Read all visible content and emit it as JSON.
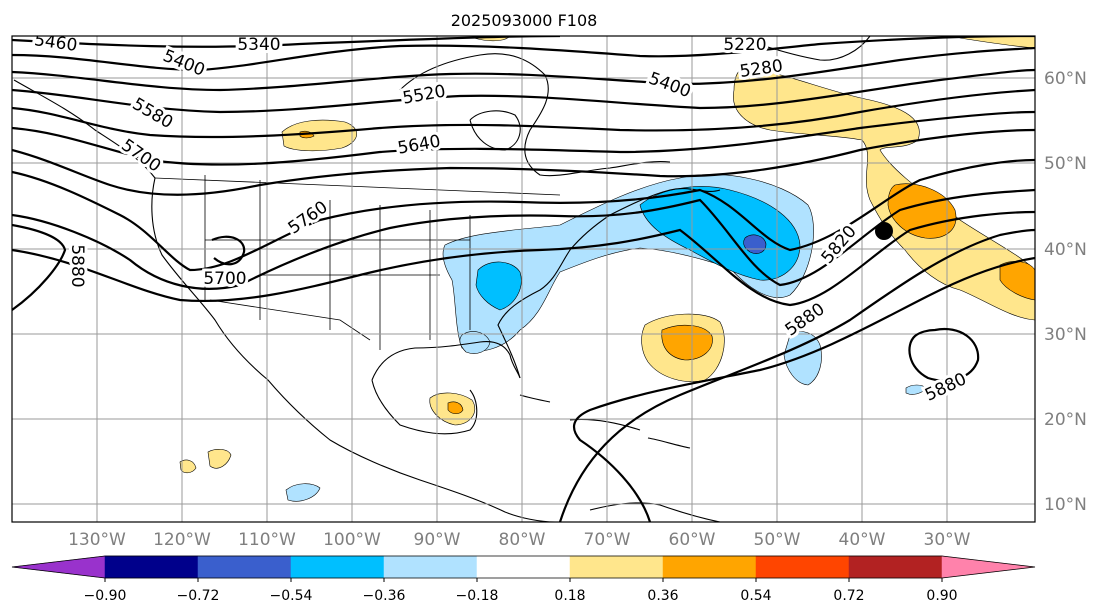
{
  "title": "2025093000 F108",
  "lat_labels": [
    "60°N",
    "50°N",
    "40°N",
    "30°N",
    "20°N",
    "10°N"
  ],
  "lon_labels": [
    "130°W",
    "120°W",
    "110°W",
    "100°W",
    "90°W",
    "80°W",
    "70°W",
    "60°W",
    "50°W",
    "40°W",
    "30°W"
  ],
  "contour_labels": [
    "5460",
    "5340",
    "5400",
    "5220",
    "5280",
    "5580",
    "5520",
    "5400",
    "5700",
    "5640",
    "5760",
    "5880",
    "5700",
    "5820",
    "5880",
    "5880"
  ],
  "colorbar": {
    "ticks": [
      "−0.90",
      "−0.72",
      "−0.54",
      "−0.36",
      "−0.18",
      "0.18",
      "0.36",
      "0.54",
      "0.72",
      "0.90"
    ],
    "colors": [
      "#9932cc",
      "#00008b",
      "#3a5fcd",
      "#00bfff",
      "#b0e2ff",
      "#ffffff",
      "#ffe68c",
      "#ffa500",
      "#ff4500",
      "#b22222",
      "#ff82ab"
    ]
  }
}
